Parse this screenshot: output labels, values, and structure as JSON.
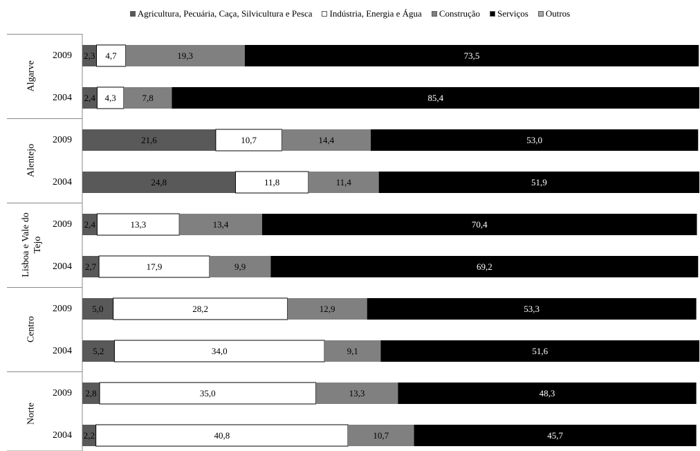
{
  "chart_data": {
    "type": "bar",
    "orientation": "horizontal",
    "stacked": true,
    "legend_position": "top",
    "grid": false,
    "xlim": [
      0,
      100
    ],
    "groups": [
      {
        "name": "Algarve",
        "categories": [
          "2009",
          "2004"
        ]
      },
      {
        "name": "Alentejo",
        "categories": [
          "2009",
          "2004"
        ]
      },
      {
        "name": "Lisboa e Vale do Tejo",
        "categories": [
          "2009",
          "2004"
        ]
      },
      {
        "name": "Centro",
        "categories": [
          "2009",
          "2004"
        ]
      },
      {
        "name": "Norte",
        "categories": [
          "2009",
          "2004"
        ]
      }
    ],
    "series": [
      {
        "name": "Agricultura, Pecuária, Caça, Silvicultura e Pesca",
        "color": "#595959",
        "label_color": "#000000",
        "values": [
          2.3,
          2.4,
          21.6,
          24.8,
          2.4,
          2.7,
          5.0,
          5.2,
          2.8,
          2.2
        ],
        "labels": [
          "2,3",
          "2,4",
          "21,6",
          "24,8",
          "2,4",
          "2,7",
          "5,0",
          "5,2",
          "2,8",
          "2,2"
        ]
      },
      {
        "name": "Indústria, Energia e Água",
        "color": "#ffffff",
        "label_color": "#000000",
        "values": [
          4.7,
          4.3,
          10.7,
          11.8,
          13.3,
          17.9,
          28.2,
          34.0,
          35.0,
          40.8
        ],
        "labels": [
          "4,7",
          "4,3",
          "10,7",
          "11,8",
          "13,3",
          "17,9",
          "28,2",
          "34,0",
          "35,0",
          "40,8"
        ]
      },
      {
        "name": "Construção",
        "color": "#808080",
        "label_color": "#000000",
        "values": [
          19.3,
          7.8,
          14.4,
          11.4,
          13.4,
          9.9,
          12.9,
          9.1,
          13.3,
          10.7
        ],
        "labels": [
          "19,3",
          "7,8",
          "14,4",
          "11,4",
          "13,4",
          "9,9",
          "12,9",
          "9,1",
          "13,3",
          "10,7"
        ]
      },
      {
        "name": "Serviços",
        "color": "#000000",
        "label_color": "#ffffff",
        "values": [
          73.5,
          85.4,
          53.0,
          51.9,
          70.4,
          69.2,
          53.3,
          51.6,
          48.3,
          45.7
        ],
        "labels": [
          "73,5",
          "85,4",
          "53,0",
          "51,9",
          "70,4",
          "69,2",
          "53,3",
          "51,6",
          "48,3",
          "45,7"
        ]
      },
      {
        "name": "Outros",
        "color": "#a6a6a6",
        "label_color": "#000000",
        "values": [
          0,
          0,
          0,
          0,
          0,
          0,
          0,
          0,
          0,
          0
        ],
        "labels": [
          "",
          "",
          "",
          "",
          "",
          "",
          "",
          "",
          "",
          ""
        ]
      }
    ]
  }
}
